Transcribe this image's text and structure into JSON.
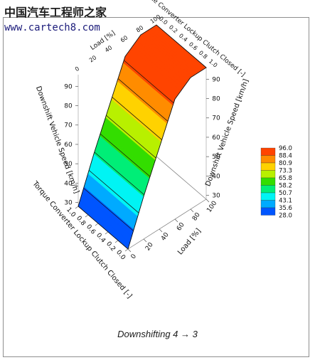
{
  "watermark": {
    "brand": "中国汽车工程师之家",
    "url": "www.cartech8.com"
  },
  "caption": "Downshifting 4 → 3",
  "chart_data": {
    "type": "surface3d",
    "title": "Downshifting 4 → 3",
    "axes": {
      "x": {
        "label": "Load [%]",
        "ticks": [
          "0",
          "20",
          "40",
          "60",
          "80",
          "100"
        ],
        "range": [
          0,
          100
        ]
      },
      "y": {
        "label": "Torque Converter Lockup Clutch Closed [-]",
        "ticks": [
          "0.0",
          "0.2",
          "0.4",
          "0.6",
          "0.8",
          "1.0"
        ],
        "range": [
          0,
          1
        ]
      },
      "z": {
        "label": "Downshift Vehicle Speed [km/h]",
        "ticks": [
          "90",
          "80",
          "70",
          "60",
          "50",
          "40",
          "30"
        ],
        "range": [
          28,
          96
        ]
      }
    },
    "colorbar": {
      "levels": [
        "96.0",
        "88.4",
        "80.9",
        "73.3",
        "65.8",
        "58.2",
        "50.7",
        "43.1",
        "35.6",
        "28.0"
      ],
      "colors": [
        "#ff4400",
        "#ff8c00",
        "#ffd200",
        "#b8f000",
        "#33dd00",
        "#00ee77",
        "#00f4f4",
        "#00aaff",
        "#0055ff",
        "#0000cc"
      ]
    },
    "surface": {
      "load": [
        0,
        20,
        40,
        60,
        80,
        100
      ],
      "speed_profile": [
        28,
        50,
        70,
        90,
        96,
        96
      ],
      "description_profile": "speed independent of lockup state"
    },
    "legend_position": "right"
  }
}
